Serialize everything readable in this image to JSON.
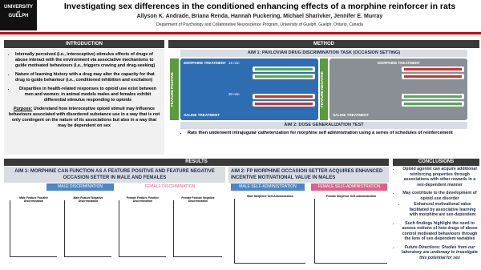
{
  "header": {
    "logo": [
      "UNIVERSITY",
      "of",
      "GUELPH"
    ],
    "title": "Investigating sex differences in the conditioned enhancing effects of a morphine reinforcer in rats",
    "authors": "Allyson K. Andrade, Briana Renda, Hannah Puckering, Michael Sharivker, Jennifer E. Murray",
    "affiliation": "Department of Psychology and Collaborative Neuroscience Program, University of Guelph, Guelph, Ontario, Canada"
  },
  "introduction": {
    "heading": "INTRODUCTION",
    "bullets": [
      "Internally perceived (i.e., interoceptive) stimulus effects of drugs of abuse interact with the environment via associative mechanisms to guide motivated behaviours (i.e., triggers craving and drug-seeking)",
      "Nature of learning history with a drug may alter the capacity for that drug to guide behaviour (i.e., conditioned inhibition and excitation)",
      "Disparities in health-related responses to opioid use exist between men and women; in animal models males and females exhibit differential stimulus responding to opioids"
    ],
    "purpose_label": "Purpose:",
    "purpose_text": "Understand how interoceptive opioid stimuli may influence behaviours associated with disordered substance use in a way that is not only contingent on the nature of its associations but also in a way that may be dependent on sex"
  },
  "method": {
    "heading": "METHOD",
    "aim1": "AIM 1: PAVLOVIAN DRUG DISCRIMINATION TASK (OCCASION SETTING)",
    "feature_positive": "FEATURE POSITIVE",
    "feature_negative": "FEATURE NEGATIVE",
    "morphine_treatment": "MORPHINE TREATMENT",
    "saline_treatment": "SALINE TREATMENT",
    "t15": "15 min",
    "t30": "30 min",
    "aim2": "AIM 2: DOSE GENERALIZATION TEST",
    "aim2_bullet": "Rats then underwent intrajugular catheterization for morphine self administration using a series of schedules of reinforcement"
  },
  "results": {
    "heading": "RESULTS",
    "aim1_heading": "AIM 1: MORPHINE CAN FUNCTION AS A FEATURE POSITIVE AND FEATURE NEGATIVE OCCASION SETTER IN MALE AND FEMALES",
    "male_disc": "MALE DISCRIMINATION",
    "female_disc": "FEMALE DISCRIMINATION",
    "plots1": [
      "Male Feature Positive Discrimination",
      "Male Feature Negative Discrimination",
      "Female Feature Positive Discrimination",
      "Female Feature Negative Discrimination"
    ],
    "aim2_heading": "AIM 2: FP MORPHINE OCCASION SETTER ACQUIRES ENHANCED INCENTIVE MOTIVATIONAL VALUE IN MALES",
    "male_sa": "MALE SELF-ADMINISTRATION",
    "female_sa": "FEMALE SELF-ADMINISTRATION",
    "plots2": [
      "Male Morphine Self-Administration",
      "Female Morphine Self-Administration"
    ]
  },
  "conclusions": {
    "heading": "CONCLUSIONS",
    "bullets": [
      "Opioid agonist can acquire additional reinforcing properties through associations with other rewards in a sex-dependent manner",
      "May contribute to the development of opioid use disorder"
    ],
    "sub": "Enhanced motivational value facilitated by associative learning with morphine are sex-dependent",
    "bullets2": [
      "Such findings highlight the need to assess notions of how drugs of abuse control motivated behaviours through the lens of sex-dependent variables"
    ],
    "future": "Future Directions: Studies from our laboratory are underway to investigate this potential for sex"
  }
}
